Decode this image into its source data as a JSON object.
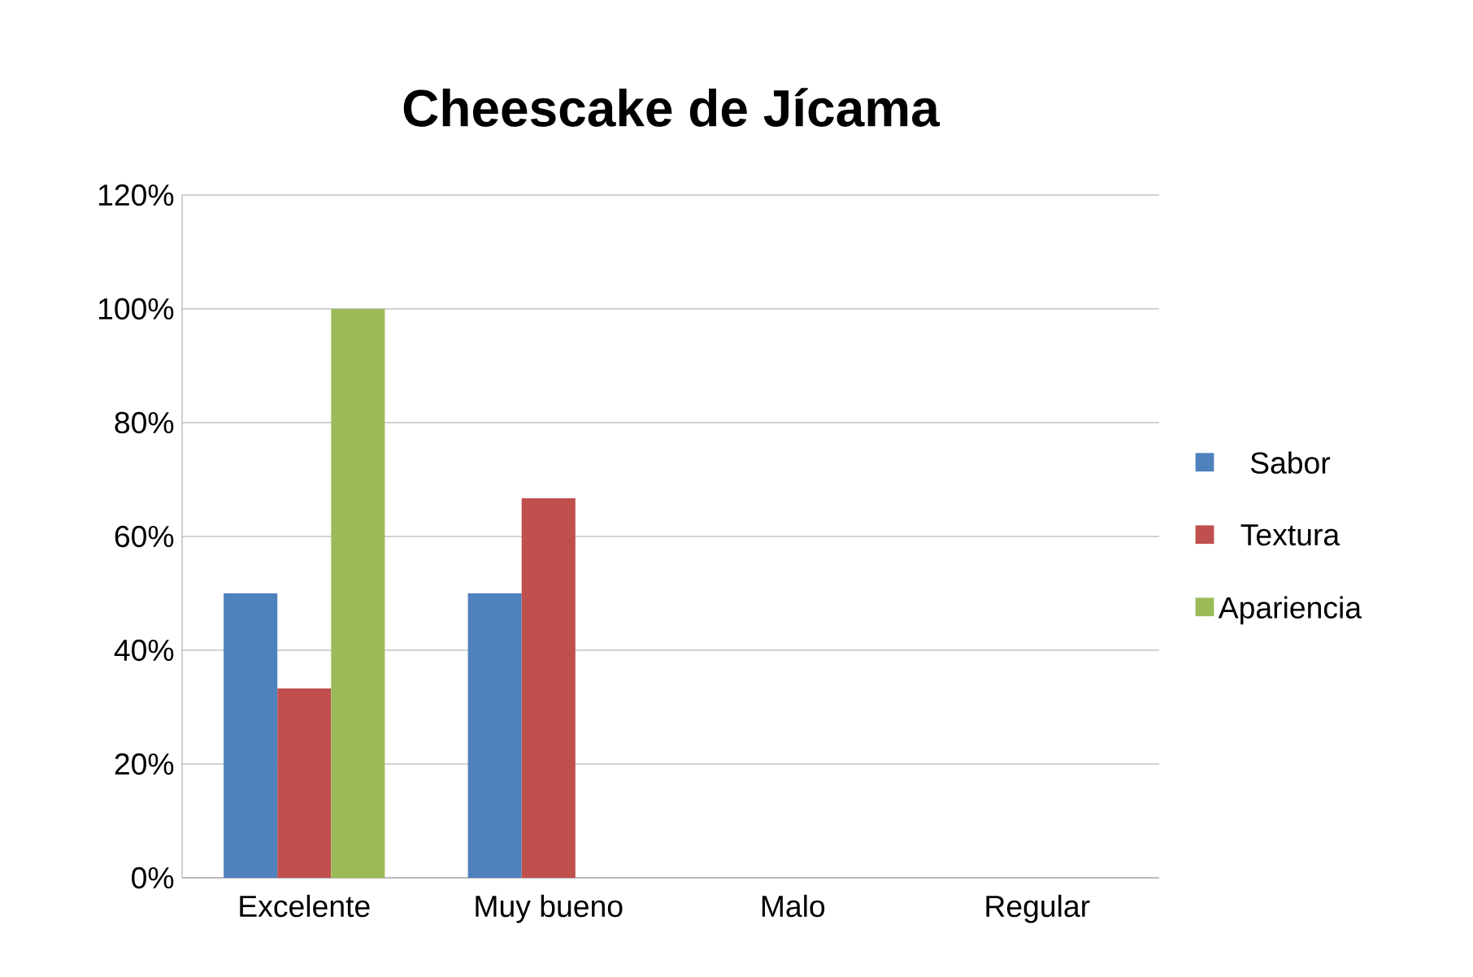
{
  "chart_data": {
    "type": "bar",
    "title": "Cheescake de Jícama",
    "categories": [
      "Excelente",
      "Muy bueno",
      "Malo",
      "Regular"
    ],
    "series": [
      {
        "name": "Sabor",
        "color": "#4f81bd",
        "values": [
          50,
          50,
          0,
          0
        ]
      },
      {
        "name": "Textura",
        "color": "#c0504d",
        "values": [
          33.3,
          66.7,
          0,
          0
        ]
      },
      {
        "name": "Apariencia",
        "color": "#9bbb59",
        "values": [
          100,
          0,
          0,
          0
        ]
      }
    ],
    "ylim": [
      0,
      120
    ],
    "yticks": [
      {
        "value": 0,
        "label": "0%"
      },
      {
        "value": 20,
        "label": "20%"
      },
      {
        "value": 40,
        "label": "40%"
      },
      {
        "value": 60,
        "label": "60%"
      },
      {
        "value": 80,
        "label": "80%"
      },
      {
        "value": 100,
        "label": "100%"
      },
      {
        "value": 120,
        "label": "120%"
      }
    ],
    "grid": "y",
    "legend": "right"
  }
}
